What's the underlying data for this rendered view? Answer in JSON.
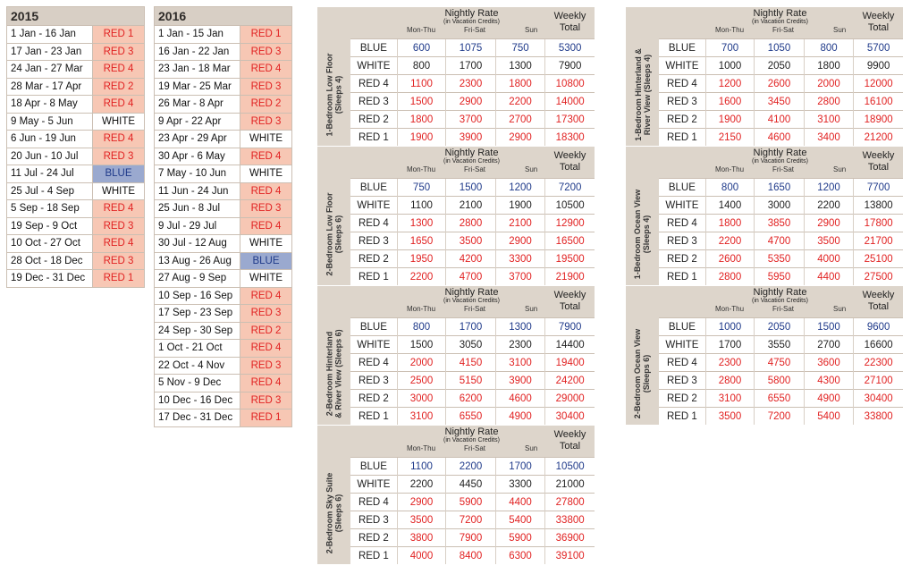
{
  "seasons": [
    {
      "year": "2015",
      "rows": [
        {
          "dates": "1 Jan - 16 Jan",
          "color": "RED 1"
        },
        {
          "dates": "17 Jan - 23 Jan",
          "color": "RED 3"
        },
        {
          "dates": "24 Jan - 27 Mar",
          "color": "RED 4"
        },
        {
          "dates": "28 Mar - 17 Apr",
          "color": "RED 2"
        },
        {
          "dates": "18 Apr - 8 May",
          "color": "RED 4"
        },
        {
          "dates": "9 May - 5 Jun",
          "color": "WHITE"
        },
        {
          "dates": "6 Jun - 19 Jun",
          "color": "RED 4"
        },
        {
          "dates": "20 Jun - 10 Jul",
          "color": "RED 3"
        },
        {
          "dates": "11 Jul - 24 Jul",
          "color": "BLUE"
        },
        {
          "dates": "25 Jul - 4 Sep",
          "color": "WHITE"
        },
        {
          "dates": "5 Sep - 18 Sep",
          "color": "RED 4"
        },
        {
          "dates": "19 Sep - 9 Oct",
          "color": "RED 3"
        },
        {
          "dates": "10 Oct - 27 Oct",
          "color": "RED 4"
        },
        {
          "dates": "28 Oct - 18 Dec",
          "color": "RED 3"
        },
        {
          "dates": "19 Dec - 31 Dec",
          "color": "RED 1"
        }
      ]
    },
    {
      "year": "2016",
      "rows": [
        {
          "dates": "1 Jan - 15 Jan",
          "color": "RED 1"
        },
        {
          "dates": "16 Jan - 22 Jan",
          "color": "RED 3"
        },
        {
          "dates": "23 Jan - 18 Mar",
          "color": "RED 4"
        },
        {
          "dates": "19 Mar - 25 Mar",
          "color": "RED 3"
        },
        {
          "dates": "26 Mar - 8 Apr",
          "color": "RED 2"
        },
        {
          "dates": "9 Apr - 22 Apr",
          "color": "RED 3"
        },
        {
          "dates": "23 Apr - 29 Apr",
          "color": "WHITE"
        },
        {
          "dates": "30 Apr - 6 May",
          "color": "RED 4"
        },
        {
          "dates": "7 May - 10 Jun",
          "color": "WHITE"
        },
        {
          "dates": "11 Jun - 24 Jun",
          "color": "RED 4"
        },
        {
          "dates": "25 Jun - 8 Jul",
          "color": "RED 3"
        },
        {
          "dates": "9 Jul - 29 Jul",
          "color": "RED 4"
        },
        {
          "dates": "30 Jul - 12 Aug",
          "color": "WHITE"
        },
        {
          "dates": "13 Aug - 26 Aug",
          "color": "BLUE"
        },
        {
          "dates": "27 Aug - 9 Sep",
          "color": "WHITE"
        },
        {
          "dates": "10 Sep - 16 Sep",
          "color": "RED 4"
        },
        {
          "dates": "17 Sep - 23 Sep",
          "color": "RED 3"
        },
        {
          "dates": "24 Sep - 30 Sep",
          "color": "RED 2"
        },
        {
          "dates": "1 Oct - 21 Oct",
          "color": "RED 4"
        },
        {
          "dates": "22 Oct - 4 Nov",
          "color": "RED 3"
        },
        {
          "dates": "5 Nov - 9 Dec",
          "color": "RED 4"
        },
        {
          "dates": "10 Dec - 16 Dec",
          "color": "RED 3"
        },
        {
          "dates": "17 Dec - 31 Dec",
          "color": "RED 1"
        }
      ]
    }
  ],
  "rate_headers": {
    "nightly_rate": "Nightly Rate",
    "in_vacation_credits": "(in Vacation Credits)",
    "mon_thu": "Mon-Thu",
    "fri_sat": "Fri-Sat",
    "sun": "Sun",
    "weekly_line1": "Weekly",
    "weekly_line2": "Total"
  },
  "accessibility_icon": "wheelchair-icon",
  "colors": {
    "red_bg": "#f7c7b4",
    "red_text": "#e12222",
    "blue_bg": "#9aa9cf",
    "blue_text": "#1f3a8a",
    "panel": "#ddd5cb"
  },
  "blocks": [
    {
      "label_line1": "1-Bedroom Low Floor",
      "label_line2": "(Sleeps 4)",
      "rows": [
        {
          "season": "BLUE",
          "mon_thu": "600",
          "fri_sat": "1075",
          "sun": "750",
          "weekly": "5300"
        },
        {
          "season": "WHITE",
          "mon_thu": "800",
          "fri_sat": "1700",
          "sun": "1300",
          "weekly": "7900"
        },
        {
          "season": "RED 4",
          "mon_thu": "1100",
          "fri_sat": "2300",
          "sun": "1800",
          "weekly": "10800"
        },
        {
          "season": "RED 3",
          "mon_thu": "1500",
          "fri_sat": "2900",
          "sun": "2200",
          "weekly": "14000"
        },
        {
          "season": "RED 2",
          "mon_thu": "1800",
          "fri_sat": "3700",
          "sun": "2700",
          "weekly": "17300"
        },
        {
          "season": "RED 1",
          "mon_thu": "1900",
          "fri_sat": "3900",
          "sun": "2900",
          "weekly": "18300"
        }
      ]
    },
    {
      "label_line1": "2-Bedroom Low Floor",
      "label_line2": "(Sleeps 6)",
      "rows": [
        {
          "season": "BLUE",
          "mon_thu": "750",
          "fri_sat": "1500",
          "sun": "1200",
          "weekly": "7200"
        },
        {
          "season": "WHITE",
          "mon_thu": "1100",
          "fri_sat": "2100",
          "sun": "1900",
          "weekly": "10500"
        },
        {
          "season": "RED 4",
          "mon_thu": "1300",
          "fri_sat": "2800",
          "sun": "2100",
          "weekly": "12900"
        },
        {
          "season": "RED 3",
          "mon_thu": "1650",
          "fri_sat": "3500",
          "sun": "2900",
          "weekly": "16500"
        },
        {
          "season": "RED 2",
          "mon_thu": "1950",
          "fri_sat": "4200",
          "sun": "3300",
          "weekly": "19500"
        },
        {
          "season": "RED 1",
          "mon_thu": "2200",
          "fri_sat": "4700",
          "sun": "3700",
          "weekly": "21900"
        }
      ]
    },
    {
      "label_line1": "2-Bedroom Hinterland",
      "label_line2": "& River View (Sleeps 6)",
      "rows": [
        {
          "season": "BLUE",
          "mon_thu": "800",
          "fri_sat": "1700",
          "sun": "1300",
          "weekly": "7900"
        },
        {
          "season": "WHITE",
          "mon_thu": "1500",
          "fri_sat": "3050",
          "sun": "2300",
          "weekly": "14400"
        },
        {
          "season": "RED 4",
          "mon_thu": "2000",
          "fri_sat": "4150",
          "sun": "3100",
          "weekly": "19400"
        },
        {
          "season": "RED 3",
          "mon_thu": "2500",
          "fri_sat": "5150",
          "sun": "3900",
          "weekly": "24200"
        },
        {
          "season": "RED 2",
          "mon_thu": "3000",
          "fri_sat": "6200",
          "sun": "4600",
          "weekly": "29000"
        },
        {
          "season": "RED 1",
          "mon_thu": "3100",
          "fri_sat": "6550",
          "sun": "4900",
          "weekly": "30400"
        }
      ]
    },
    {
      "label_line1": "2-Bedroom Sky Suite",
      "label_line2": "(Sleeps 6)",
      "rows": [
        {
          "season": "BLUE",
          "mon_thu": "1100",
          "fri_sat": "2200",
          "sun": "1700",
          "weekly": "10500"
        },
        {
          "season": "WHITE",
          "mon_thu": "2200",
          "fri_sat": "4450",
          "sun": "3300",
          "weekly": "21000"
        },
        {
          "season": "RED 4",
          "mon_thu": "2900",
          "fri_sat": "5900",
          "sun": "4400",
          "weekly": "27800"
        },
        {
          "season": "RED 3",
          "mon_thu": "3500",
          "fri_sat": "7200",
          "sun": "5400",
          "weekly": "33800"
        },
        {
          "season": "RED 2",
          "mon_thu": "3800",
          "fri_sat": "7900",
          "sun": "5900",
          "weekly": "36900"
        },
        {
          "season": "RED 1",
          "mon_thu": "4000",
          "fri_sat": "8400",
          "sun": "6300",
          "weekly": "39100"
        }
      ]
    },
    {
      "label_line1": "1-Bedroom Hinterland &",
      "label_line2": "River View (Sleeps 4)",
      "rows": [
        {
          "season": "BLUE",
          "mon_thu": "700",
          "fri_sat": "1050",
          "sun": "800",
          "weekly": "5700"
        },
        {
          "season": "WHITE",
          "mon_thu": "1000",
          "fri_sat": "2050",
          "sun": "1800",
          "weekly": "9900"
        },
        {
          "season": "RED 4",
          "mon_thu": "1200",
          "fri_sat": "2600",
          "sun": "2000",
          "weekly": "12000"
        },
        {
          "season": "RED 3",
          "mon_thu": "1600",
          "fri_sat": "3450",
          "sun": "2800",
          "weekly": "16100"
        },
        {
          "season": "RED 2",
          "mon_thu": "1900",
          "fri_sat": "4100",
          "sun": "3100",
          "weekly": "18900"
        },
        {
          "season": "RED 1",
          "mon_thu": "2150",
          "fri_sat": "4600",
          "sun": "3400",
          "weekly": "21200"
        }
      ]
    },
    {
      "label_line1": "1-Bedroom Ocean View",
      "label_line2": "(Sleeps 4)",
      "rows": [
        {
          "season": "BLUE",
          "mon_thu": "800",
          "fri_sat": "1650",
          "sun": "1200",
          "weekly": "7700"
        },
        {
          "season": "WHITE",
          "mon_thu": "1400",
          "fri_sat": "3000",
          "sun": "2200",
          "weekly": "13800"
        },
        {
          "season": "RED 4",
          "mon_thu": "1800",
          "fri_sat": "3850",
          "sun": "2900",
          "weekly": "17800"
        },
        {
          "season": "RED 3",
          "mon_thu": "2200",
          "fri_sat": "4700",
          "sun": "3500",
          "weekly": "21700"
        },
        {
          "season": "RED 2",
          "mon_thu": "2600",
          "fri_sat": "5350",
          "sun": "4000",
          "weekly": "25100"
        },
        {
          "season": "RED 1",
          "mon_thu": "2800",
          "fri_sat": "5950",
          "sun": "4400",
          "weekly": "27500"
        }
      ]
    },
    {
      "label_line1": "2-Bedroom Ocean View",
      "label_line2": "(Sleeps 6)",
      "rows": [
        {
          "season": "BLUE",
          "mon_thu": "1000",
          "fri_sat": "2050",
          "sun": "1500",
          "weekly": "9600"
        },
        {
          "season": "WHITE",
          "mon_thu": "1700",
          "fri_sat": "3550",
          "sun": "2700",
          "weekly": "16600"
        },
        {
          "season": "RED 4",
          "mon_thu": "2300",
          "fri_sat": "4750",
          "sun": "3600",
          "weekly": "22300"
        },
        {
          "season": "RED 3",
          "mon_thu": "2800",
          "fri_sat": "5800",
          "sun": "4300",
          "weekly": "27100"
        },
        {
          "season": "RED 2",
          "mon_thu": "3100",
          "fri_sat": "6550",
          "sun": "4900",
          "weekly": "30400"
        },
        {
          "season": "RED 1",
          "mon_thu": "3500",
          "fri_sat": "7200",
          "sun": "5400",
          "weekly": "33800"
        }
      ]
    }
  ]
}
